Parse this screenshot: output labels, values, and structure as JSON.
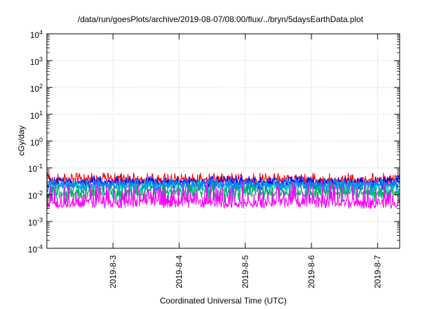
{
  "chart_data": {
    "type": "line",
    "title": "/data/run/goesPlots/archive/2019-08-07/08:00/flux/../bryn/5daysEarthData.plot",
    "xlabel": "Coordinated Universal Time (UTC)",
    "ylabel": "cGy/day",
    "y_scale": "log",
    "ylim": [
      0.0001,
      10000
    ],
    "y_ticks": [
      {
        "base": "10",
        "exp": "-4",
        "value": 0.0001
      },
      {
        "base": "10",
        "exp": "-3",
        "value": 0.001
      },
      {
        "base": "10",
        "exp": "-2",
        "value": 0.01
      },
      {
        "base": "10",
        "exp": "-1",
        "value": 0.1
      },
      {
        "base": "10",
        "exp": "0",
        "value": 1
      },
      {
        "base": "10",
        "exp": "1",
        "value": 10
      },
      {
        "base": "10",
        "exp": "2",
        "value": 100
      },
      {
        "base": "10",
        "exp": "3",
        "value": 1000
      },
      {
        "base": "10",
        "exp": "4",
        "value": 10000
      }
    ],
    "xlim": [
      "2019-08-02T00:00",
      "2019-08-07T08:00"
    ],
    "x_ticks": [
      {
        "label": "2019-8-3",
        "date": "2019-08-03"
      },
      {
        "label": "2019-8-4",
        "date": "2019-08-04"
      },
      {
        "label": "2019-8-5",
        "date": "2019-08-05"
      },
      {
        "label": "2019-8-6",
        "date": "2019-08-06"
      },
      {
        "label": "2019-8-7",
        "date": "2019-08-07"
      }
    ],
    "grid": true,
    "series": [
      {
        "color": "#ff0000",
        "approx_range": [
          0.02,
          0.065
        ],
        "typical": 0.035
      },
      {
        "color": "#0000ff",
        "approx_range": [
          0.015,
          0.05
        ],
        "typical": 0.028
      },
      {
        "color": "#00c8c8",
        "approx_range": [
          0.007,
          0.035
        ],
        "typical": 0.02
      },
      {
        "color": "#0080ff",
        "approx_range": [
          0.012,
          0.04
        ],
        "typical": 0.024
      },
      {
        "color": "#00b060",
        "approx_range": [
          0.005,
          0.025
        ],
        "typical": 0.012
      },
      {
        "color": "#ff00ff",
        "approx_range": [
          0.003,
          0.03
        ],
        "typical": 0.005
      }
    ]
  }
}
